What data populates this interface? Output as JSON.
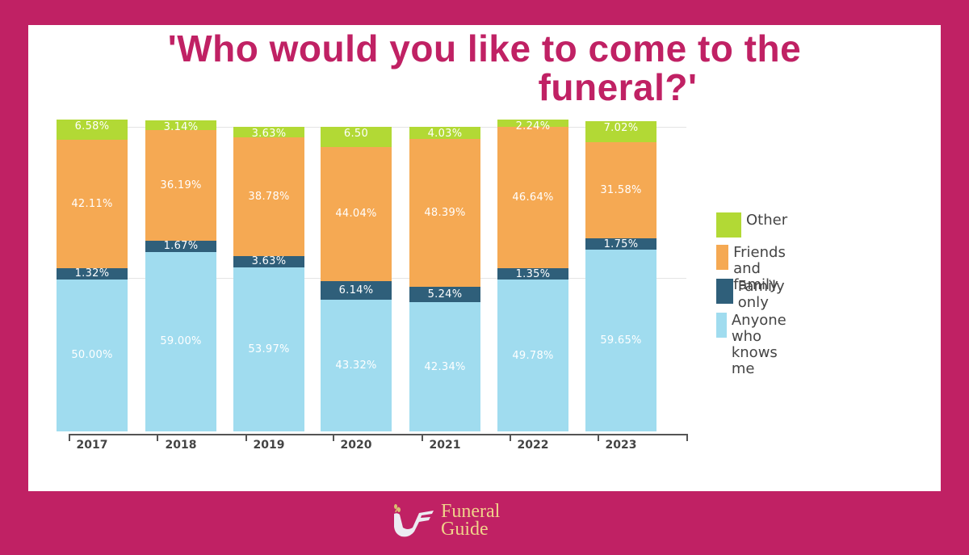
{
  "title": {
    "line1": "'Who would you like to come to the",
    "line2": "funeral?'"
  },
  "colors": {
    "background": "#c02164",
    "card": "#ffffff",
    "title": "#c02164",
    "other": "#b2d935",
    "friends_and_family": "#f5a953",
    "family_only": "#2f5f7a",
    "anyone": "#a0dcef"
  },
  "legend": [
    {
      "label": "Other",
      "color": "#b2d935"
    },
    {
      "label": "Friends and family",
      "color": "#f5a953"
    },
    {
      "label": "Family only",
      "color": "#2f5f7a"
    },
    {
      "label": "Anyone who knows me",
      "color": "#a0dcef"
    }
  ],
  "chart_data": {
    "type": "bar",
    "stacked": true,
    "title": "'Who would you like to come to the funeral?'",
    "xlabel": "",
    "ylabel": "",
    "ylim": [
      0,
      100
    ],
    "grid": true,
    "legend_position": "right",
    "categories": [
      "2017",
      "2018",
      "2019",
      "2020",
      "2021",
      "2022",
      "2023"
    ],
    "series": [
      {
        "name": "Anyone who knows me",
        "values": [
          50.0,
          59.0,
          53.97,
          43.32,
          42.34,
          49.78,
          59.65
        ],
        "labels": [
          "50.00%",
          "59.00%",
          "53.97%",
          "43.32%",
          "42.34%",
          "49.78%",
          "59.65%"
        ]
      },
      {
        "name": "Family only",
        "values": [
          1.32,
          1.67,
          3.63,
          6.14,
          5.24,
          1.35,
          1.75
        ],
        "labels": [
          "1.32%",
          "1.67%",
          "3.63%",
          "6.14%",
          "5.24%",
          "1.35%",
          "1.75%"
        ]
      },
      {
        "name": "Friends and family",
        "values": [
          42.11,
          36.19,
          38.78,
          44.04,
          48.39,
          46.64,
          31.58
        ],
        "labels": [
          "42.11%",
          "36.19%",
          "38.78%",
          "44.04%",
          "48.39%",
          "46.64%",
          "31.58%"
        ]
      },
      {
        "name": "Other",
        "values": [
          6.58,
          3.14,
          3.63,
          6.5,
          4.03,
          2.24,
          7.02
        ],
        "labels": [
          "6.58%",
          "3.14%",
          "3.63%",
          "6.50",
          "4.03%",
          "2.24%",
          "7.02%"
        ]
      }
    ]
  },
  "logo": {
    "line1": "Funeral",
    "line2": "Guide"
  }
}
